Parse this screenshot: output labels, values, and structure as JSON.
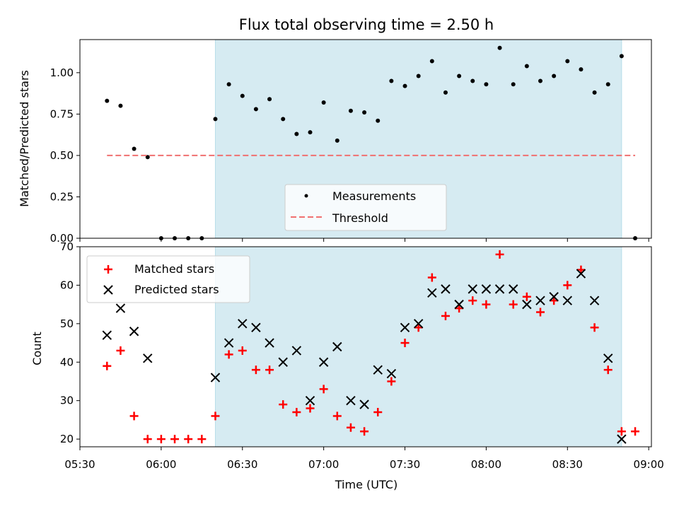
{
  "chart_data": [
    {
      "type": "scatter",
      "title": "Flux total observing time = 2.50 h",
      "ylabel": "Matched/Predicted stars",
      "xlabel": "",
      "ylim": [
        0,
        1.2
      ],
      "yticks": [
        "0.00",
        "0.25",
        "0.50",
        "0.75",
        "1.00"
      ],
      "yticks_values": [
        0,
        0.25,
        0.5,
        0.75,
        1.0
      ],
      "highlight_span": [
        "06:20",
        "08:50"
      ],
      "legend_position": "lower-center",
      "grid": false,
      "series": [
        {
          "name": "Measurements",
          "marker": "dot",
          "color": "#000000",
          "x": [
            "05:40",
            "05:45",
            "05:50",
            "05:55",
            "06:00",
            "06:05",
            "06:10",
            "06:15",
            "06:20",
            "06:25",
            "06:30",
            "06:35",
            "06:40",
            "06:45",
            "06:50",
            "06:55",
            "07:00",
            "07:05",
            "07:10",
            "07:15",
            "07:20",
            "07:25",
            "07:30",
            "07:35",
            "07:40",
            "07:45",
            "07:50",
            "07:55",
            "08:00",
            "08:05",
            "08:10",
            "08:15",
            "08:20",
            "08:25",
            "08:30",
            "08:35",
            "08:40",
            "08:45",
            "08:50",
            "08:55"
          ],
          "y": [
            0.83,
            0.8,
            0.54,
            0.49,
            0.0,
            0.0,
            0.0,
            0.0,
            0.72,
            0.93,
            0.86,
            0.78,
            0.84,
            0.72,
            0.63,
            0.64,
            0.82,
            0.59,
            0.77,
            0.76,
            0.71,
            0.95,
            0.92,
            0.98,
            1.07,
            0.88,
            0.98,
            0.95,
            0.93,
            1.15,
            0.93,
            1.04,
            0.95,
            0.98,
            1.07,
            1.02,
            0.88,
            0.93,
            1.1,
            0.0
          ]
        },
        {
          "name": "Threshold",
          "marker": "dashed-line",
          "color": "#f07070",
          "x": [
            "05:40",
            "08:55"
          ],
          "y": [
            0.5,
            0.5
          ]
        }
      ]
    },
    {
      "type": "scatter",
      "title": "",
      "ylabel": "Count",
      "xlabel": "Time (UTC)",
      "ylim": [
        18,
        70
      ],
      "yticks": [
        "20",
        "30",
        "40",
        "50",
        "60",
        "70"
      ],
      "yticks_values": [
        20,
        30,
        40,
        50,
        60,
        70
      ],
      "xticks": [
        "05:30",
        "06:00",
        "06:30",
        "07:00",
        "07:30",
        "08:00",
        "08:30",
        "09:00"
      ],
      "xlim": [
        "05:30",
        "09:01"
      ],
      "highlight_span": [
        "06:20",
        "08:50"
      ],
      "legend_position": "top-left",
      "grid": false,
      "series": [
        {
          "name": "Matched stars",
          "marker": "plus",
          "color": "#ff0000",
          "x": [
            "05:40",
            "05:45",
            "05:50",
            "05:55",
            "06:00",
            "06:05",
            "06:10",
            "06:15",
            "06:20",
            "06:25",
            "06:30",
            "06:35",
            "06:40",
            "06:45",
            "06:50",
            "06:55",
            "07:00",
            "07:05",
            "07:10",
            "07:15",
            "07:20",
            "07:25",
            "07:30",
            "07:35",
            "07:40",
            "07:45",
            "07:50",
            "07:55",
            "08:00",
            "08:05",
            "08:10",
            "08:15",
            "08:20",
            "08:25",
            "08:30",
            "08:35",
            "08:40",
            "08:45",
            "08:50",
            "08:55"
          ],
          "y": [
            39,
            43,
            26,
            20,
            20,
            20,
            20,
            20,
            26,
            42,
            43,
            38,
            38,
            29,
            27,
            28,
            33,
            26,
            23,
            22,
            27,
            35,
            45,
            49,
            62,
            52,
            54,
            56,
            55,
            68,
            55,
            57,
            53,
            56,
            60,
            64,
            49,
            38,
            22,
            22
          ]
        },
        {
          "name": "Predicted stars",
          "marker": "x",
          "color": "#000000",
          "x": [
            "05:40",
            "05:45",
            "05:50",
            "05:55",
            "06:20",
            "06:25",
            "06:30",
            "06:35",
            "06:40",
            "06:45",
            "06:50",
            "06:55",
            "07:00",
            "07:05",
            "07:10",
            "07:15",
            "07:20",
            "07:25",
            "07:30",
            "07:35",
            "07:40",
            "07:45",
            "07:50",
            "07:55",
            "08:00",
            "08:05",
            "08:10",
            "08:15",
            "08:20",
            "08:25",
            "08:30",
            "08:35",
            "08:40",
            "08:45",
            "08:50"
          ],
          "y": [
            47,
            54,
            48,
            41,
            36,
            45,
            50,
            49,
            45,
            40,
            43,
            30,
            40,
            44,
            30,
            29,
            38,
            37,
            49,
            50,
            58,
            59,
            55,
            59,
            59,
            59,
            59,
            55,
            56,
            57,
            56,
            63,
            56,
            41,
            20
          ]
        }
      ]
    }
  ]
}
